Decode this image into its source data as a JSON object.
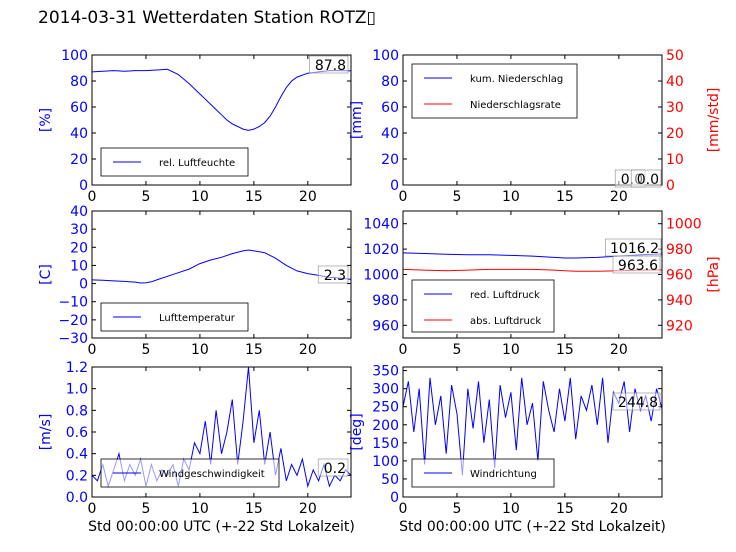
{
  "page": {
    "title": "2014-03-31 Wetterdaten Station ROTZ▯"
  },
  "chart_data": [
    {
      "type": "line",
      "id": "humidity",
      "ylabel": "[%]",
      "xlim": [
        0,
        24
      ],
      "ylim": [
        0,
        100
      ],
      "xticks": [
        "0",
        "5",
        "10",
        "15",
        "20"
      ],
      "yticks": [
        "0",
        "20",
        "40",
        "60",
        "80",
        "100"
      ],
      "legend": [
        "rel. Luftfeuchte"
      ],
      "legend_position": "lower-left",
      "annotation": "87.8",
      "colors": {
        "primary": "#0000ff"
      },
      "x": [
        0,
        1,
        2,
        3,
        4,
        5,
        6,
        7,
        8,
        9,
        10,
        10.5,
        11,
        11.5,
        12,
        12.5,
        13,
        13.5,
        14,
        14.5,
        15,
        15.5,
        16,
        16.5,
        17,
        17.5,
        18,
        18.5,
        19,
        20,
        21,
        22,
        23,
        24
      ],
      "series": [
        {
          "name": "rel. Luftfeuchte",
          "values": [
            87,
            87.5,
            88,
            87.5,
            88,
            88,
            88.5,
            89,
            85,
            78,
            70,
            66,
            62,
            58,
            54,
            50,
            47,
            45,
            43,
            42,
            43,
            45,
            48,
            53,
            60,
            68,
            75,
            80,
            83,
            86,
            87,
            88,
            88,
            87.8
          ]
        }
      ]
    },
    {
      "type": "line",
      "id": "precipitation",
      "ylabel": "[mm]",
      "y2label": "[mm/std]",
      "xlim": [
        0,
        24
      ],
      "ylim": [
        0,
        100
      ],
      "y2lim": [
        0,
        50
      ],
      "xticks": [
        "0",
        "5",
        "10",
        "15",
        "20"
      ],
      "yticks": [
        "0",
        "20",
        "40",
        "60",
        "80",
        "100"
      ],
      "y2ticks": [
        "0",
        "10",
        "20",
        "30",
        "40",
        "50"
      ],
      "legend": [
        "kum. Niederschlag",
        "Niederschlagsrate"
      ],
      "legend_position": "upper-left",
      "annotations": [
        "0.0",
        "0.0"
      ],
      "colors": {
        "primary": "#0000ff",
        "secondary": "#ff0000"
      },
      "x": [
        0,
        24
      ],
      "series": [
        {
          "name": "kum. Niederschlag",
          "values": [
            0,
            0
          ]
        },
        {
          "name": "Niederschlagsrate",
          "values": [
            0,
            0
          ]
        }
      ]
    },
    {
      "type": "line",
      "id": "temperature",
      "ylabel": "[C]",
      "xlim": [
        0,
        24
      ],
      "ylim": [
        -30,
        40
      ],
      "xticks": [
        "0",
        "5",
        "10",
        "15",
        "20"
      ],
      "yticks": [
        "−30",
        "−20",
        "−10",
        "0",
        "10",
        "20",
        "30",
        "40"
      ],
      "legend": [
        "Lufttemperatur"
      ],
      "legend_position": "lower-left",
      "annotation": "2.3",
      "colors": {
        "primary": "#0000ff"
      },
      "x": [
        0,
        1,
        2,
        3,
        4,
        4.5,
        5,
        5.5,
        6,
        7,
        8,
        9,
        10,
        11,
        12,
        13,
        14,
        14.5,
        15,
        15.5,
        16,
        17,
        18,
        19,
        20,
        21,
        22,
        23,
        24
      ],
      "series": [
        {
          "name": "Lufttemperatur",
          "values": [
            2,
            1.8,
            1.5,
            1.2,
            0.8,
            0.3,
            0.5,
            1,
            2,
            4,
            6,
            8,
            11,
            13,
            14.5,
            16.5,
            18,
            18.5,
            18,
            17.5,
            17,
            14,
            10,
            7,
            5.5,
            4.5,
            3.5,
            3,
            2.3
          ]
        }
      ]
    },
    {
      "type": "line",
      "id": "pressure",
      "ylabel": "",
      "y2label": "[hPa]",
      "xlim": [
        0,
        24
      ],
      "ylim": [
        950,
        1050
      ],
      "y2lim": [
        910,
        1010
      ],
      "xticks": [
        "0",
        "5",
        "10",
        "15",
        "20"
      ],
      "yticks": [
        "960",
        "980",
        "1000",
        "1020",
        "1040"
      ],
      "y2ticks": [
        "920",
        "940",
        "960",
        "980",
        "1000"
      ],
      "legend": [
        "red. Luftdruck",
        "abs. Luftdruck"
      ],
      "legend_position": "lower-left",
      "annotations": [
        "1016.2",
        "963.6"
      ],
      "colors": {
        "primary": "#0000ff",
        "secondary": "#ff0000"
      },
      "x": [
        0,
        2,
        4,
        6,
        8,
        10,
        12,
        14,
        15,
        16,
        18,
        20,
        22,
        24
      ],
      "series": [
        {
          "name": "red. Luftdruck",
          "values": [
            1017,
            1016.5,
            1016,
            1015.5,
            1015.5,
            1015,
            1014.5,
            1013.5,
            1013,
            1013,
            1013.5,
            1014.5,
            1015.5,
            1016.2
          ]
        },
        {
          "name": "abs. Luftdruck",
          "values": [
            964,
            963.5,
            963,
            963.5,
            964,
            964,
            964,
            963.5,
            963,
            962.5,
            962.5,
            963,
            963.5,
            963.6
          ]
        }
      ]
    },
    {
      "type": "line",
      "id": "windspeed",
      "ylabel": "[m/s]",
      "xlabel": "Std 00:00:00 UTC (+-22 Std Lokalzeit)",
      "xlim": [
        0,
        24
      ],
      "ylim": [
        0,
        1.2
      ],
      "xticks": [
        "0",
        "5",
        "10",
        "15",
        "20"
      ],
      "yticks": [
        "0.0",
        "0.2",
        "0.4",
        "0.6",
        "0.8",
        "1.0",
        "1.2"
      ],
      "legend": [
        "Windgeschwindigkeit"
      ],
      "legend_position": "lower-left",
      "annotation": "0.2",
      "colors": {
        "primary": "#0000ff"
      },
      "x": [
        0,
        0.5,
        1,
        1.5,
        2,
        2.5,
        3,
        3.5,
        4,
        4.5,
        5,
        5.5,
        6,
        6.5,
        7,
        7.5,
        8,
        8.5,
        9,
        9.5,
        10,
        10.5,
        11,
        11.5,
        12,
        12.5,
        13,
        13.5,
        14,
        14.5,
        15,
        15.5,
        16,
        16.5,
        17,
        17.5,
        18,
        18.5,
        19,
        19.5,
        20,
        20.5,
        21,
        21.5,
        22,
        22.5,
        23,
        23.5,
        24
      ],
      "series": [
        {
          "name": "Windgeschwindigkeit",
          "values": [
            0.2,
            0.15,
            0.3,
            0.1,
            0.25,
            0.4,
            0.15,
            0.3,
            0.2,
            0.35,
            0.1,
            0.3,
            0.15,
            0.25,
            0.2,
            0.3,
            0.1,
            0.35,
            0.25,
            0.5,
            0.4,
            0.7,
            0.3,
            0.8,
            0.4,
            0.6,
            0.9,
            0.3,
            0.7,
            1.2,
            0.5,
            0.8,
            0.3,
            0.6,
            0.2,
            0.45,
            0.15,
            0.3,
            0.2,
            0.35,
            0.1,
            0.25,
            0.15,
            0.3,
            0.1,
            0.2,
            0.15,
            0.25,
            0.2
          ]
        }
      ]
    },
    {
      "type": "line",
      "id": "winddirection",
      "ylabel": "[deg]",
      "xlabel": "Std 00:00:00 UTC (+-22 Std Lokalzeit)",
      "xlim": [
        0,
        24
      ],
      "ylim": [
        0,
        360
      ],
      "xticks": [
        "0",
        "5",
        "10",
        "15",
        "20"
      ],
      "yticks": [
        "0",
        "50",
        "100",
        "150",
        "200",
        "250",
        "300",
        "350"
      ],
      "legend": [
        "Windrichtung"
      ],
      "legend_position": "lower-left",
      "annotation": "244.8",
      "colors": {
        "primary": "#0000ff"
      },
      "x": [
        0,
        0.5,
        1,
        1.5,
        2,
        2.5,
        3,
        3.5,
        4,
        4.5,
        5,
        5.5,
        6,
        6.5,
        7,
        7.5,
        8,
        8.5,
        9,
        9.5,
        10,
        10.5,
        11,
        11.5,
        12,
        12.5,
        13,
        13.5,
        14,
        14.5,
        15,
        15.5,
        16,
        16.5,
        17,
        17.5,
        18,
        18.5,
        19,
        19.5,
        20,
        20.5,
        21,
        21.5,
        22,
        22.5,
        23,
        23.5,
        24
      ],
      "series": [
        {
          "name": "Windrichtung",
          "values": [
            250,
            320,
            180,
            300,
            90,
            330,
            200,
            280,
            120,
            310,
            230,
            60,
            300,
            190,
            320,
            150,
            270,
            80,
            310,
            220,
            290,
            130,
            330,
            200,
            260,
            100,
            320,
            240,
            180,
            300,
            210,
            330,
            160,
            280,
            240,
            310,
            200,
            330,
            150,
            290,
            260,
            320,
            180,
            300,
            240,
            280,
            210,
            300,
            244.8
          ]
        }
      ]
    }
  ]
}
